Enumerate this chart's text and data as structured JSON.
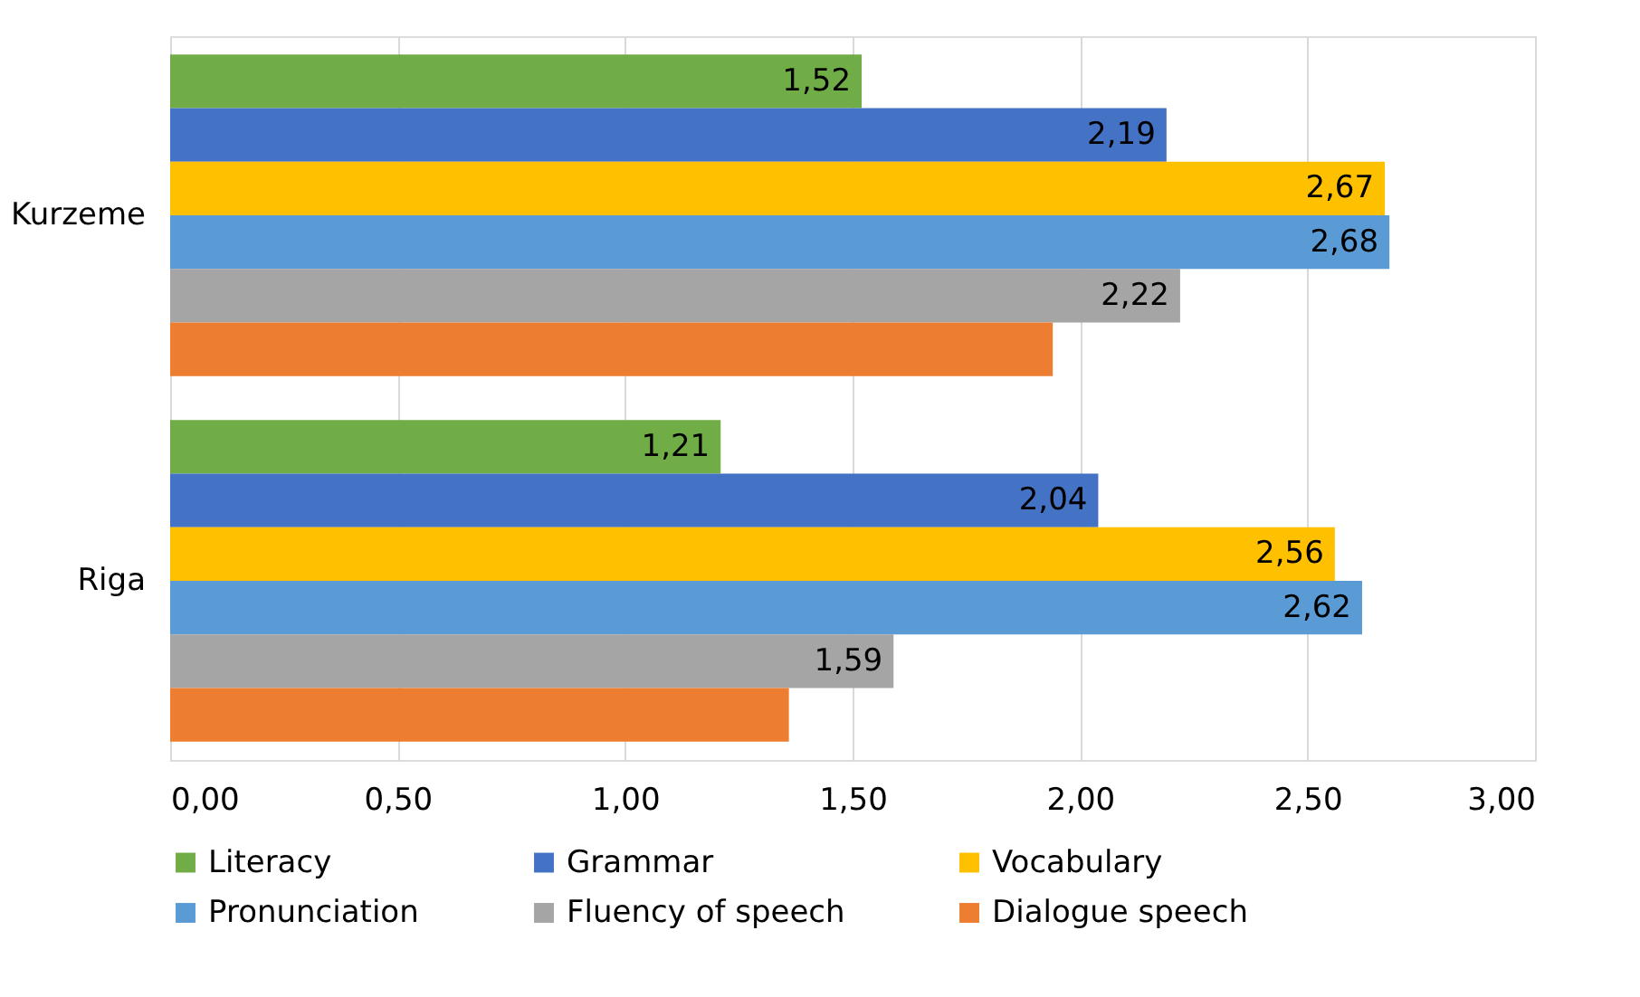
{
  "chart_data": {
    "type": "bar",
    "orientation": "horizontal",
    "categories": [
      "Kurzeme",
      "Riga"
    ],
    "series": [
      {
        "name": "Literacy",
        "color": "#70ad47",
        "values": [
          1.52,
          1.21
        ],
        "value_labels": [
          "1,52",
          "1,21"
        ]
      },
      {
        "name": "Grammar",
        "color": "#4472c4",
        "values": [
          2.19,
          2.04
        ],
        "value_labels": [
          "2,19",
          "2,04"
        ]
      },
      {
        "name": "Vocabulary",
        "color": "#ffc000",
        "values": [
          2.67,
          2.56
        ],
        "value_labels": [
          "2,67",
          "2,56"
        ]
      },
      {
        "name": "Pronunciation",
        "color": "#5b9bd5",
        "values": [
          2.68,
          2.62
        ],
        "value_labels": [
          "2,68",
          "2,62"
        ]
      },
      {
        "name": "Fluency of speech",
        "color": "#a5a5a5",
        "values": [
          2.22,
          1.59
        ],
        "value_labels": [
          "2,22",
          "1,59"
        ]
      },
      {
        "name": "Dialogue speech",
        "color": "#ed7d31",
        "values": [
          1.94,
          1.36
        ],
        "value_labels": [
          null,
          null
        ]
      }
    ],
    "xlim": [
      0,
      3
    ],
    "xticks": [
      {
        "value": 0,
        "label": "0,00"
      },
      {
        "value": 0.5,
        "label": "0,50"
      },
      {
        "value": 1,
        "label": "1,00"
      },
      {
        "value": 1.5,
        "label": "1,50"
      },
      {
        "value": 2,
        "label": "2,00"
      },
      {
        "value": 2.5,
        "label": "2,50"
      },
      {
        "value": 3,
        "label": "3,00"
      }
    ],
    "grid": "x",
    "legend": "bottom"
  }
}
